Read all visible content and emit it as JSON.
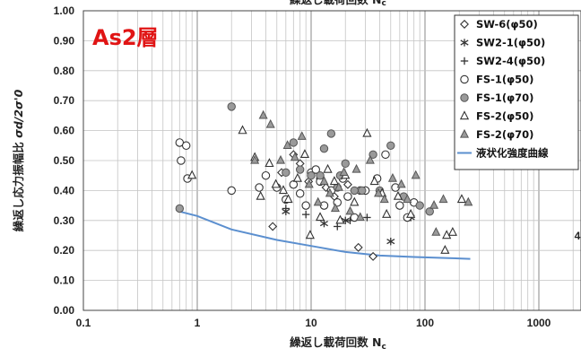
{
  "chart_data": {
    "type": "scatter",
    "title": "繰返し載荷回数 Nc",
    "panel_label": "As2層",
    "xlabel": "繰返し載荷回数 Nc",
    "xlabel_main": "繰返し載荷回数",
    "xlabel_sym": "N",
    "xlabel_sub": "c",
    "ylabel": "繰返し応力振幅比 σd/2σ'0",
    "ylabel_main": "繰返し応力振幅比",
    "ylabel_sym": "σd/2σ'0",
    "xscale": "log",
    "xlim": [
      0.1,
      2000
    ],
    "ylim": [
      0.0,
      1.0
    ],
    "x_ticks": [
      "0.1",
      "1",
      "10",
      "100",
      "1000"
    ],
    "y_ticks": [
      "0.00",
      "0.10",
      "0.20",
      "0.30",
      "0.40",
      "0.50",
      "0.60",
      "0.70",
      "0.80",
      "0.90",
      "1.00"
    ],
    "grid": true,
    "legend_position": "top-right",
    "series": [
      {
        "name": "SW-6(φ50)",
        "marker": "diamond",
        "color": "#333333",
        "points": [
          [
            4.6,
            0.28
          ],
          [
            26,
            0.21
          ],
          [
            35,
            0.18
          ],
          [
            12,
            0.44
          ],
          [
            7,
            0.52
          ],
          [
            8,
            0.49
          ],
          [
            13.5,
            0.41
          ],
          [
            5.5,
            0.46
          ],
          [
            9.5,
            0.43
          ],
          [
            16,
            0.38
          ],
          [
            21,
            0.42
          ]
        ]
      },
      {
        "name": "SW2-1(φ50)",
        "marker": "asterisk",
        "color": "#333333",
        "points": [
          [
            6,
            0.33
          ],
          [
            13,
            0.29
          ],
          [
            20,
            0.3
          ],
          [
            50,
            0.23
          ],
          [
            75,
            0.31
          ]
        ]
      },
      {
        "name": "SW2-4(φ50)",
        "marker": "plus",
        "color": "#333333",
        "points": [
          [
            6,
            0.34
          ],
          [
            9,
            0.32
          ],
          [
            17,
            0.28
          ],
          [
            22,
            0.3
          ],
          [
            31,
            0.31
          ]
        ]
      },
      {
        "name": "FS-1(φ50)",
        "marker": "circle-open",
        "color": "#333333",
        "points": [
          [
            0.7,
            0.56
          ],
          [
            0.8,
            0.55
          ],
          [
            0.72,
            0.5
          ],
          [
            0.82,
            0.44
          ],
          [
            2,
            0.4
          ],
          [
            3.5,
            0.41
          ],
          [
            4,
            0.45
          ],
          [
            5,
            0.41
          ],
          [
            6,
            0.37
          ],
          [
            7,
            0.42
          ],
          [
            8,
            0.39
          ],
          [
            9,
            0.35
          ],
          [
            10,
            0.46
          ],
          [
            11,
            0.47
          ],
          [
            12,
            0.43
          ],
          [
            13,
            0.35
          ],
          [
            15,
            0.4
          ],
          [
            17,
            0.36
          ],
          [
            19,
            0.44
          ],
          [
            21,
            0.38
          ],
          [
            24,
            0.31
          ],
          [
            27,
            0.4
          ],
          [
            30,
            0.4
          ],
          [
            38,
            0.44
          ],
          [
            45,
            0.52
          ],
          [
            55,
            0.41
          ],
          [
            60,
            0.35
          ],
          [
            70,
            0.31
          ],
          [
            80,
            0.36
          ]
        ]
      },
      {
        "name": "FS-1(φ70)",
        "marker": "circle-filled",
        "color": "#9a9a9a",
        "points": [
          [
            0.7,
            0.34
          ],
          [
            2,
            0.68
          ],
          [
            6,
            0.46
          ],
          [
            7,
            0.56
          ],
          [
            8,
            0.47
          ],
          [
            10,
            0.45
          ],
          [
            12,
            0.45
          ],
          [
            13,
            0.54
          ],
          [
            15,
            0.59
          ],
          [
            17,
            0.41
          ],
          [
            18,
            0.45
          ],
          [
            20,
            0.49
          ],
          [
            24,
            0.4
          ],
          [
            28,
            0.4
          ],
          [
            35,
            0.52
          ],
          [
            40,
            0.4
          ],
          [
            50,
            0.55
          ],
          [
            65,
            0.38
          ],
          [
            90,
            0.35
          ],
          [
            110,
            0.33
          ]
        ]
      },
      {
        "name": "FS-2(φ50)",
        "marker": "triangle-open",
        "color": "#333333",
        "points": [
          [
            0.9,
            0.45
          ],
          [
            2.5,
            0.6
          ],
          [
            3.2,
            0.51
          ],
          [
            3.6,
            0.38
          ],
          [
            4.3,
            0.49
          ],
          [
            4.9,
            0.42
          ],
          [
            5.7,
            0.4
          ],
          [
            6.3,
            0.37
          ],
          [
            7.6,
            0.44
          ],
          [
            8.8,
            0.52
          ],
          [
            9.8,
            0.25
          ],
          [
            12,
            0.31
          ],
          [
            14,
            0.47
          ],
          [
            16,
            0.43
          ],
          [
            18,
            0.3
          ],
          [
            20,
            0.45
          ],
          [
            24,
            0.36
          ],
          [
            31,
            0.59
          ],
          [
            36,
            0.43
          ],
          [
            42,
            0.39
          ],
          [
            46,
            0.32
          ],
          [
            58,
            0.38
          ],
          [
            75,
            0.32
          ],
          [
            150,
            0.2
          ],
          [
            155,
            0.25
          ],
          [
            175,
            0.26
          ],
          [
            210,
            0.37
          ]
        ]
      },
      {
        "name": "FS-2(φ70)",
        "marker": "triangle-filled",
        "color": "#9a9a9a",
        "points": [
          [
            3.2,
            0.5
          ],
          [
            3.8,
            0.65
          ],
          [
            4.4,
            0.62
          ],
          [
            5.4,
            0.5
          ],
          [
            6.2,
            0.55
          ],
          [
            7.2,
            0.51
          ],
          [
            8.3,
            0.58
          ],
          [
            9.6,
            0.42
          ],
          [
            11.5,
            0.36
          ],
          [
            13,
            0.43
          ],
          [
            14.6,
            0.39
          ],
          [
            16.3,
            0.34
          ],
          [
            17.5,
            0.41
          ],
          [
            19.4,
            0.46
          ],
          [
            22,
            0.33
          ],
          [
            25,
            0.47
          ],
          [
            27,
            0.31
          ],
          [
            33,
            0.5
          ],
          [
            39,
            0.39
          ],
          [
            44,
            0.37
          ],
          [
            52,
            0.44
          ],
          [
            62,
            0.42
          ],
          [
            70,
            0.37
          ],
          [
            83,
            0.45
          ],
          [
            120,
            0.35
          ],
          [
            125,
            0.26
          ],
          [
            145,
            0.37
          ],
          [
            240,
            0.36
          ]
        ]
      }
    ],
    "curve": {
      "name": "液状化強度曲線",
      "color": "#5b8fcf",
      "points": [
        [
          0.7,
          0.33
        ],
        [
          1,
          0.315
        ],
        [
          2,
          0.27
        ],
        [
          5,
          0.235
        ],
        [
          10,
          0.215
        ],
        [
          20,
          0.195
        ],
        [
          40,
          0.183
        ],
        [
          80,
          0.178
        ],
        [
          150,
          0.175
        ],
        [
          250,
          0.172
        ]
      ]
    },
    "annotations": [
      "4"
    ]
  }
}
